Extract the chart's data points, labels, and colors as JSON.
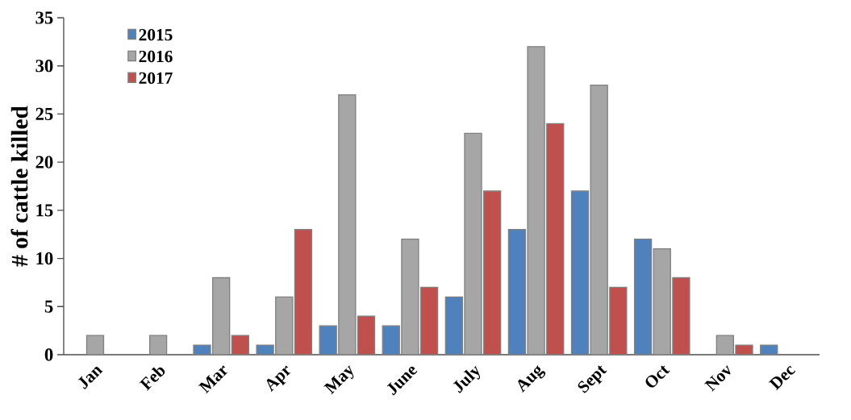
{
  "chart_data": {
    "type": "bar",
    "ylabel": "# of cattle killed",
    "categories": [
      "Jan",
      "Feb",
      "Mar",
      "Apr",
      "May",
      "June",
      "July",
      "Aug",
      "Sept",
      "Oct",
      "Nov",
      "Dec"
    ],
    "series": [
      {
        "name": "2015",
        "color": "#4f81bd",
        "values": [
          null,
          null,
          1,
          1,
          3,
          3,
          6,
          13,
          17,
          12,
          null,
          1
        ]
      },
      {
        "name": "2016",
        "color": "#a6a6a6",
        "values": [
          2,
          2,
          8,
          6,
          27,
          12,
          23,
          32,
          28,
          11,
          2,
          null
        ]
      },
      {
        "name": "2017",
        "color": "#c0504d",
        "values": [
          null,
          null,
          2,
          13,
          4,
          7,
          17,
          24,
          7,
          8,
          1,
          null
        ]
      }
    ],
    "ylim": [
      0,
      35
    ],
    "yticks": [
      0,
      5,
      10,
      15,
      20,
      25,
      30,
      35
    ],
    "grid": false,
    "legend": "top left"
  }
}
